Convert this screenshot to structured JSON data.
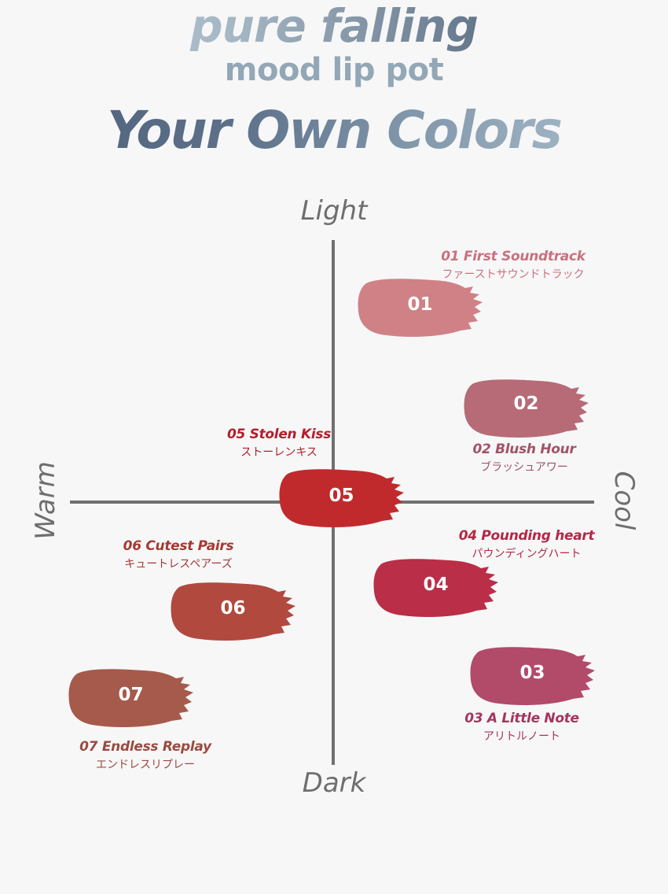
{
  "header": {
    "title_line1": "pure falling",
    "title_line2": "mood lip pot",
    "title_line3": "Your Own Colors"
  },
  "axes": {
    "top": "Light",
    "bottom": "Dark",
    "left": "Warm",
    "right": "Cool"
  },
  "shades": [
    {
      "num": "01",
      "name": "01 First Soundtrack",
      "jp": "ファーストサウンドトラック",
      "color": "#d08186",
      "text_color": "#c9707f"
    },
    {
      "num": "02",
      "name": "02 Blush Hour",
      "jp": "ブラッシュアワー",
      "color": "#b66b77",
      "text_color": "#a15365"
    },
    {
      "num": "03",
      "name": "03 A Little  Note",
      "jp": "アリトルノート",
      "color": "#b24a6a",
      "text_color": "#a2365d"
    },
    {
      "num": "04",
      "name": "04 Pounding heart",
      "jp": "パウンディングハート",
      "color": "#ba2e47",
      "text_color": "#b32845"
    },
    {
      "num": "05",
      "name": "05 Stolen Kiss",
      "jp": "ストーレンキス",
      "color": "#c02a2c",
      "text_color": "#b21f2b"
    },
    {
      "num": "06",
      "name": "06 Cutest Pairs",
      "jp": "キュートレスペアーズ",
      "color": "#b1493f",
      "text_color": "#a33a33"
    },
    {
      "num": "07",
      "name": "07 Endless Replay",
      "jp": "エンドレスリプレー",
      "color": "#a65a4b",
      "text_color": "#9a4b3f"
    }
  ]
}
